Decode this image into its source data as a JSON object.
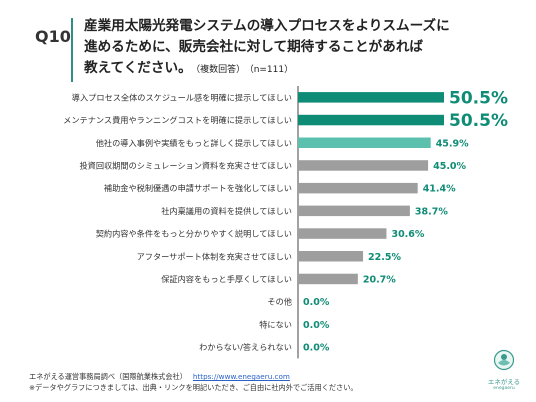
{
  "question": {
    "number": "Q10",
    "lines": [
      "産業用太陽光発電システムの導入プロセスをよりスムーズに",
      "進めるために、販売会社に対して期待することがあれば",
      "教えてください。"
    ],
    "note": "（複数回答）",
    "n": "（n=111）"
  },
  "chart_data": {
    "type": "bar",
    "orientation": "horizontal",
    "categories": [
      "導入プロセス全体のスケジュール感を明確に提示してほしい",
      "メンテナンス費用やランニングコストを明確に提示してほしい",
      "他社の導入事例や実績をもっと詳しく提示してほしい",
      "投資回収期間のシミュレーション資料を充実させてほしい",
      "補助金や税制優遇の申請サポートを強化してほしい",
      "社内稟議用の資料を提供してほしい",
      "契約内容や条件をもっと分かりやすく説明してほしい",
      "アフターサポート体制を充実させてほしい",
      "保証内容をもっと手厚くしてほしい",
      "その他",
      "特にない",
      "わからない/答えられない"
    ],
    "values": [
      50.5,
      50.5,
      45.9,
      45.0,
      41.4,
      38.7,
      30.6,
      22.5,
      20.7,
      0.0,
      0.0,
      0.0
    ],
    "value_labels": [
      "50.5%",
      "50.5%",
      "45.9%",
      "45.0%",
      "41.4%",
      "38.7%",
      "30.6%",
      "22.5%",
      "20.7%",
      "0.0%",
      "0.0%",
      "0.0%"
    ],
    "colors": [
      "#0f8c76",
      "#0f8c76",
      "#5cc0ae",
      "#9e9e9e",
      "#9e9e9e",
      "#9e9e9e",
      "#9e9e9e",
      "#9e9e9e",
      "#9e9e9e",
      "#9e9e9e",
      "#9e9e9e",
      "#9e9e9e"
    ],
    "label_colors": [
      "#0f8c76",
      "#0f8c76",
      "#0f8c76",
      "#0f8c76",
      "#0f8c76",
      "#0f8c76",
      "#0f8c76",
      "#0f8c76",
      "#0f8c76",
      "#0f8c76",
      "#0f8c76",
      "#0f8c76"
    ],
    "xlim": [
      0,
      50.5
    ],
    "grid": false
  },
  "footer": {
    "source": "エネがえる運営事務局調べ（国際航業株式会社）",
    "url": "https://www.enegaeru.com",
    "note": "※データやグラフにつきましては、出典・リンクを明記いただき、ご自由に社内外でご活用ください。"
  },
  "logo": {
    "text": "エネがえる",
    "sub": "enegaeru"
  }
}
